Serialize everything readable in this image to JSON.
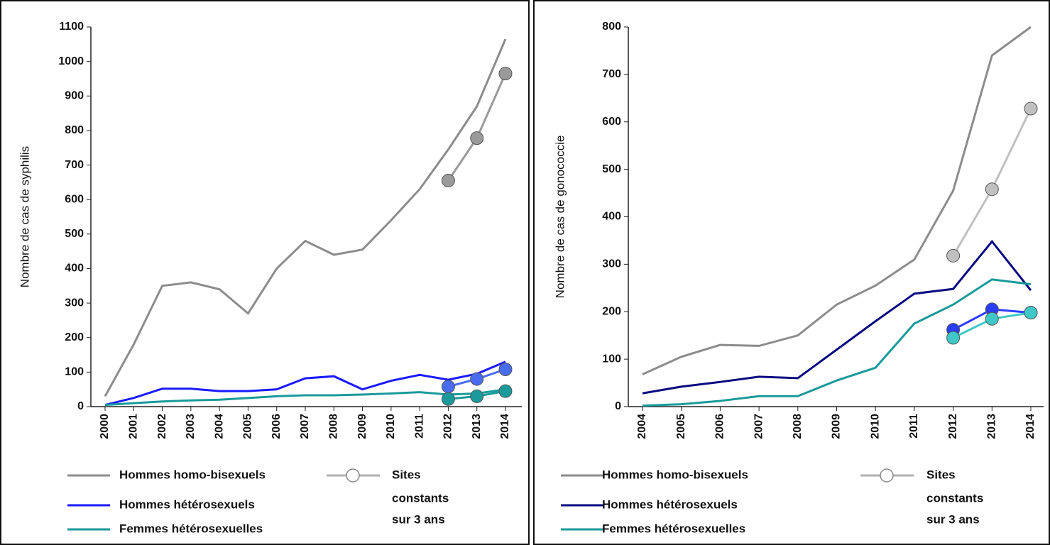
{
  "chart_data": [
    {
      "type": "line",
      "ylabel": "Nombre de cas de syphilis",
      "categories": [
        "2000",
        "2001",
        "2002",
        "2003",
        "2004",
        "2005",
        "2006",
        "2007",
        "2008",
        "2009",
        "2010",
        "2011",
        "2012",
        "2013",
        "2014"
      ],
      "ylim": [
        0,
        1100
      ],
      "yticks": [
        0,
        100,
        200,
        300,
        400,
        500,
        600,
        700,
        800,
        900,
        1000,
        1100
      ],
      "sites_label": [
        "Sites",
        "constants",
        "sur 3 ans"
      ],
      "sites_legend_color": "#b0b0b0",
      "series": [
        {
          "name": "Hommes homo-bisexuels",
          "color": "#8c8c8c",
          "values": [
            30,
            180,
            350,
            360,
            340,
            270,
            400,
            480,
            440,
            455,
            540,
            630,
            745,
            870,
            1065
          ],
          "sites_color": "#9a9a9a",
          "sites_values": [
            null,
            null,
            null,
            null,
            null,
            null,
            null,
            null,
            null,
            null,
            null,
            null,
            655,
            778,
            965
          ]
        },
        {
          "name": "Hommes hétérosexuels",
          "color": "#1a1aff",
          "values": [
            5,
            25,
            52,
            52,
            45,
            45,
            50,
            82,
            88,
            50,
            75,
            92,
            78,
            95,
            130
          ],
          "sites_color": "#4a6cf0",
          "sites_values": [
            null,
            null,
            null,
            null,
            null,
            null,
            null,
            null,
            null,
            null,
            null,
            null,
            58,
            80,
            108
          ]
        },
        {
          "name": "Femmes hétérosexuelles",
          "color": "#1a9a9a",
          "values": [
            5,
            10,
            15,
            18,
            20,
            25,
            30,
            33,
            33,
            35,
            38,
            42,
            35,
            38,
            50
          ],
          "sites_color": "#1a9a9a",
          "sites_values": [
            null,
            null,
            null,
            null,
            null,
            null,
            null,
            null,
            null,
            null,
            null,
            null,
            22,
            30,
            45
          ]
        }
      ]
    },
    {
      "type": "line",
      "ylabel": "Nombre de cas de gonococcie",
      "categories": [
        "2004",
        "2005",
        "2006",
        "2007",
        "2008",
        "2009",
        "2010",
        "2011",
        "2012",
        "2013",
        "2014"
      ],
      "ylim": [
        0,
        800
      ],
      "yticks": [
        0,
        100,
        200,
        300,
        400,
        500,
        600,
        700,
        800
      ],
      "sites_label": [
        "Sites",
        "constants",
        "sur 3 ans"
      ],
      "sites_legend_color": "#b0b0b0",
      "series": [
        {
          "name": "Hommes homo-bisexuels",
          "color": "#8c8c8c",
          "values": [
            68,
            105,
            130,
            128,
            150,
            215,
            255,
            310,
            455,
            740,
            800
          ],
          "sites_color": "#c0c0c0",
          "sites_values": [
            null,
            null,
            null,
            null,
            null,
            null,
            null,
            null,
            318,
            458,
            628
          ]
        },
        {
          "name": "Hommes hétérosexuels",
          "color": "#0a0a80",
          "values": [
            28,
            42,
            52,
            63,
            60,
            120,
            180,
            238,
            248,
            348,
            245
          ],
          "sites_color": "#2a3cff",
          "sites_values": [
            null,
            null,
            null,
            null,
            null,
            null,
            null,
            null,
            162,
            205,
            198
          ]
        },
        {
          "name": "Femmes hétérosexuelles",
          "color": "#1a9a9a",
          "values": [
            2,
            5,
            12,
            22,
            22,
            55,
            82,
            175,
            215,
            268,
            258
          ],
          "sites_color": "#40c8c8",
          "sites_values": [
            null,
            null,
            null,
            null,
            null,
            null,
            null,
            null,
            145,
            185,
            198
          ]
        }
      ]
    }
  ]
}
